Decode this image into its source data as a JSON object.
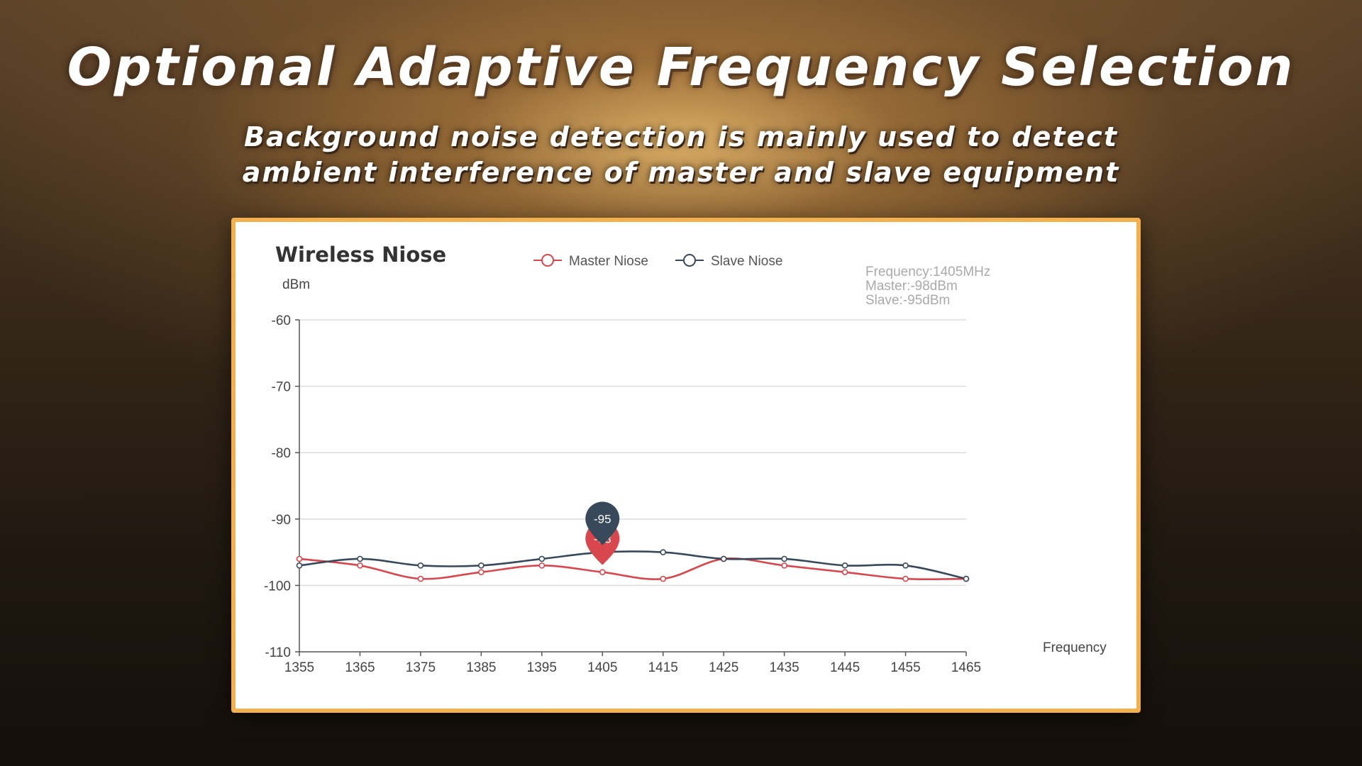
{
  "headline": "Optional Adaptive Frequency Selection",
  "subheadline": "Background noise detection is mainly used to detect ambient interference of master and slave equipment",
  "colors": {
    "accent_border": "#f2b04e",
    "master_series": "#d9474e",
    "slave_series": "#37495a"
  },
  "chart_data": {
    "type": "line",
    "title": "Wireless Niose",
    "ylabel": "dBm",
    "xlabel": "Frequency",
    "ylim": [
      -110,
      -60
    ],
    "yticks": [
      -60,
      -70,
      -80,
      -90,
      -100,
      -110
    ],
    "xlim": [
      1355,
      1465
    ],
    "xticks": [
      1355,
      1365,
      1375,
      1385,
      1395,
      1405,
      1415,
      1425,
      1435,
      1445,
      1455,
      1465
    ],
    "grid": true,
    "legend_position": "top-center",
    "x": [
      1355,
      1365,
      1375,
      1385,
      1395,
      1405,
      1415,
      1425,
      1435,
      1445,
      1455,
      1465
    ],
    "series": [
      {
        "name": "Master Niose",
        "values": [
          -96,
          -97,
          -99,
          -98,
          -97,
          -98,
          -99,
          -96,
          -97,
          -98,
          -99,
          -99
        ]
      },
      {
        "name": "Slave Niose",
        "values": [
          -97,
          -96,
          -97,
          -97,
          -96,
          -95,
          -95,
          -96,
          -96,
          -97,
          -97,
          -99
        ]
      }
    ],
    "markers": [
      {
        "series": "Master Niose",
        "x": 1405,
        "label": "-98"
      },
      {
        "series": "Slave Niose",
        "x": 1405,
        "label": "-95"
      }
    ],
    "info_box": {
      "frequency": "Frequency:1405MHz",
      "master": "Master:-98dBm",
      "slave": "Slave:-95dBm"
    }
  }
}
